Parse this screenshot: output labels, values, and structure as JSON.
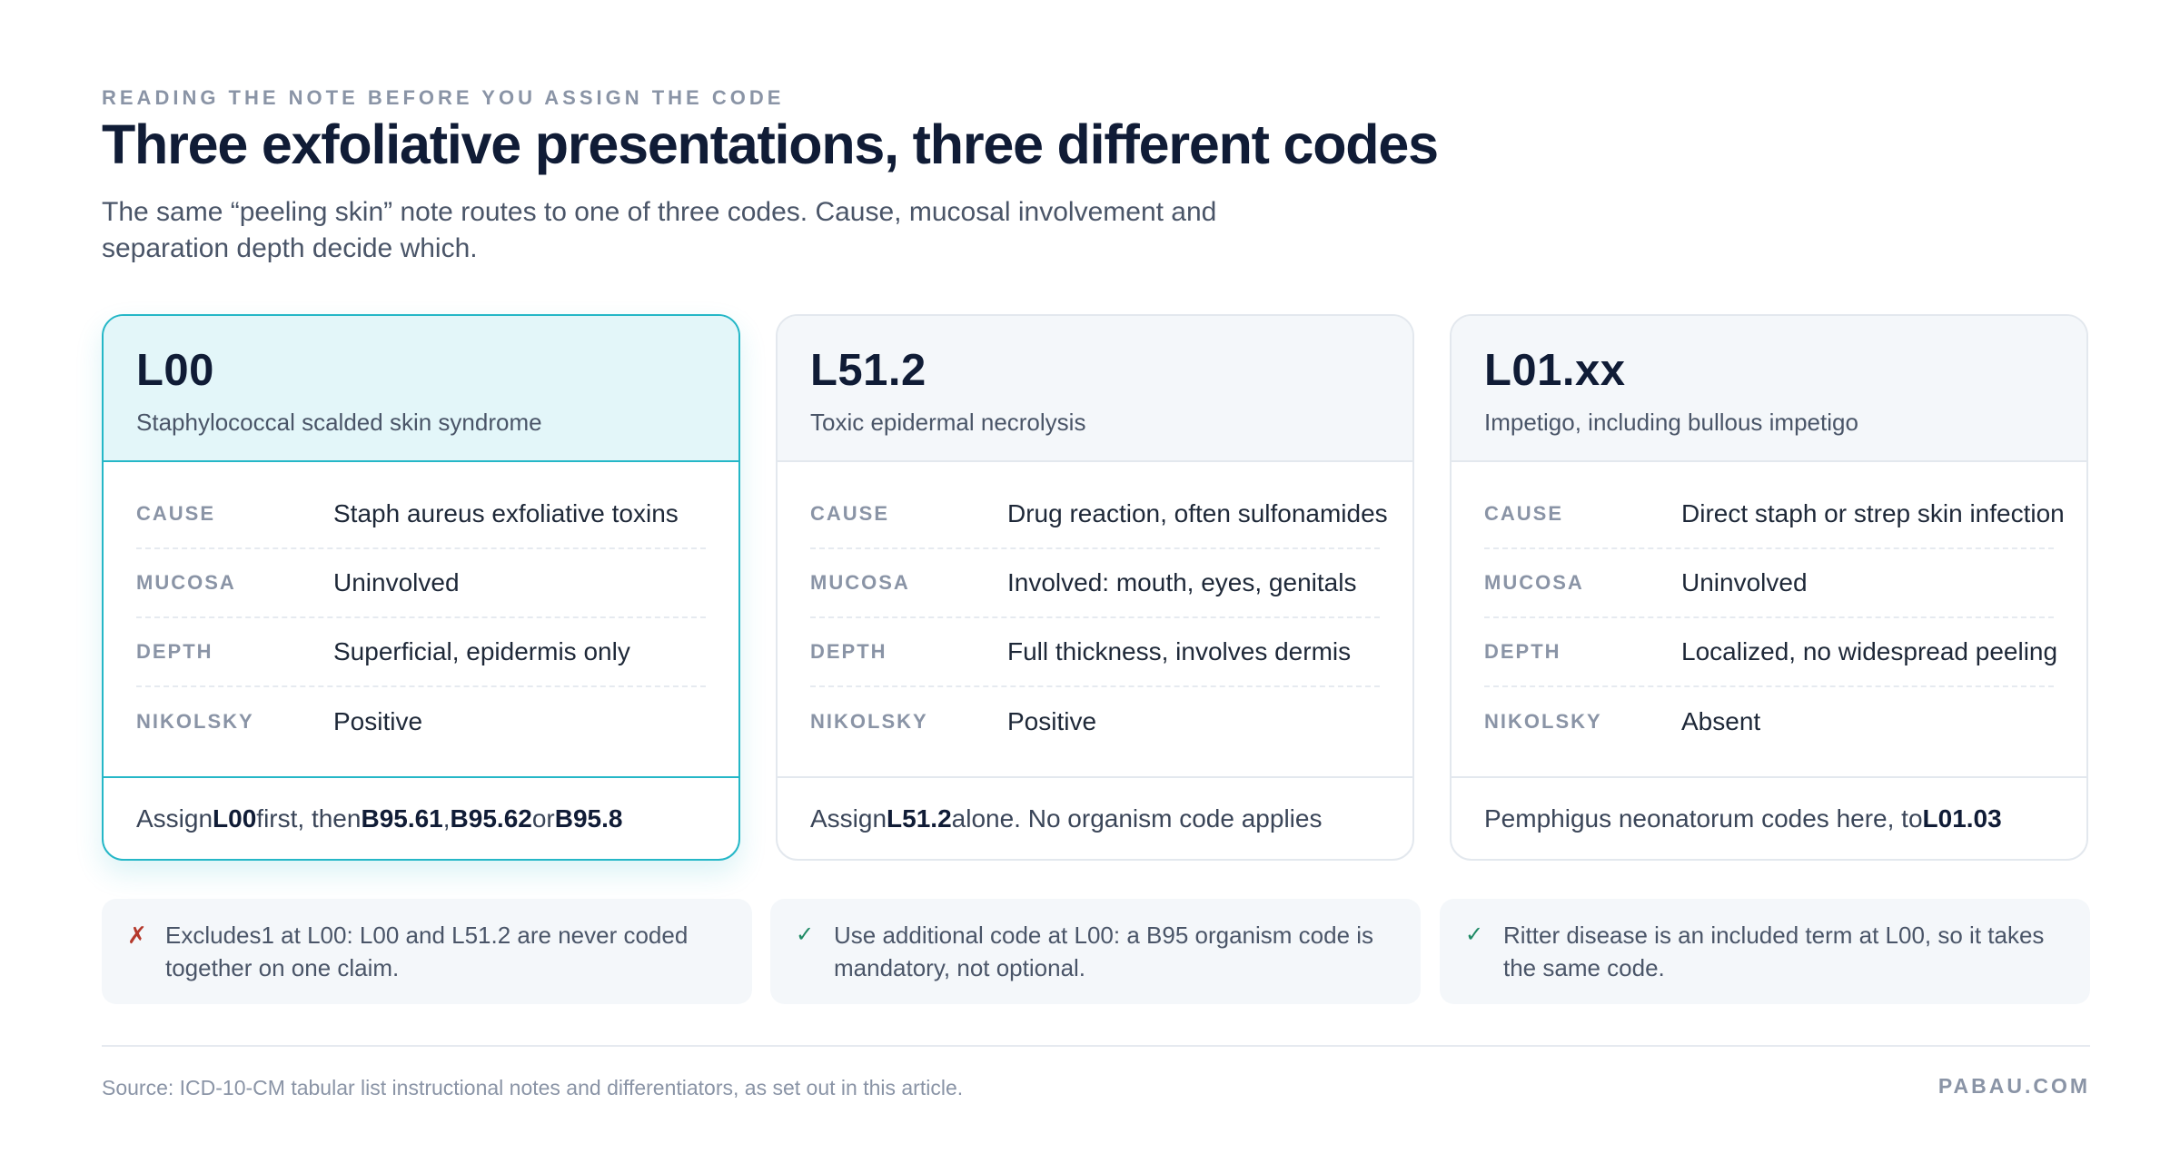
{
  "header": {
    "eyebrow": "READING THE NOTE BEFORE YOU ASSIGN THE CODE",
    "title": "Three exfoliative presentations, three different codes",
    "subtitle": "The same “peeling skin” note routes to one of three codes. Cause, mucosal involvement and separation depth decide which."
  },
  "row_labels": {
    "cause": "CAUSE",
    "mucosa": "MUCOSA",
    "depth": "DEPTH",
    "nikolsky": "NIKOLSKY"
  },
  "cards": [
    {
      "code": "L00",
      "condition": "Staphylococcal scalded skin syndrome",
      "cause": "Staph aureus exfoliative toxins",
      "mucosa": "Uninvolved",
      "depth": "Superficial, epidermis only",
      "nikolsky": "Positive",
      "foot": {
        "t1": "Assign ",
        "b1": "L00",
        "t2": " first, then ",
        "b2": "B95.61",
        "t3": ", ",
        "b3": "B95.62",
        "t4": " or ",
        "b4": "B95.8"
      }
    },
    {
      "code": "L51.2",
      "condition": "Toxic epidermal necrolysis",
      "cause": "Drug reaction, often sulfonamides",
      "mucosa": "Involved: mouth, eyes, genitals",
      "depth": "Full thickness, involves dermis",
      "nikolsky": "Positive",
      "foot": {
        "t1": "Assign ",
        "b1": "L51.2",
        "t2": " alone. No organism code applies"
      }
    },
    {
      "code": "L01.xx",
      "condition": "Impetigo, including bullous impetigo",
      "cause": "Direct staph or strep skin infection",
      "mucosa": "Uninvolved",
      "depth": "Localized, no widespread peeling",
      "nikolsky": "Absent",
      "foot": {
        "t1": "Pemphigus neonatorum codes here, to ",
        "b1": "L01.03"
      }
    }
  ],
  "notes": [
    {
      "icon": "✗",
      "text": "Excludes1 at L00: L00 and L51.2 are never coded together on one claim."
    },
    {
      "icon": "✓",
      "text": "Use additional code at L00: a B95 organism code is mandatory, not optional."
    },
    {
      "icon": "✓",
      "text": "Ritter disease is an included term at L00, so it takes the same code."
    }
  ],
  "footer": {
    "source": "Source: ICD-10-CM tabular list instructional notes and differentiators, as set out in this article.",
    "brand": "PABAU.COM"
  },
  "colors": {
    "accent": "#25b7c7",
    "accent_bg": "#e3f6f9",
    "cross": "#b5392c",
    "check": "#1f8a65"
  }
}
